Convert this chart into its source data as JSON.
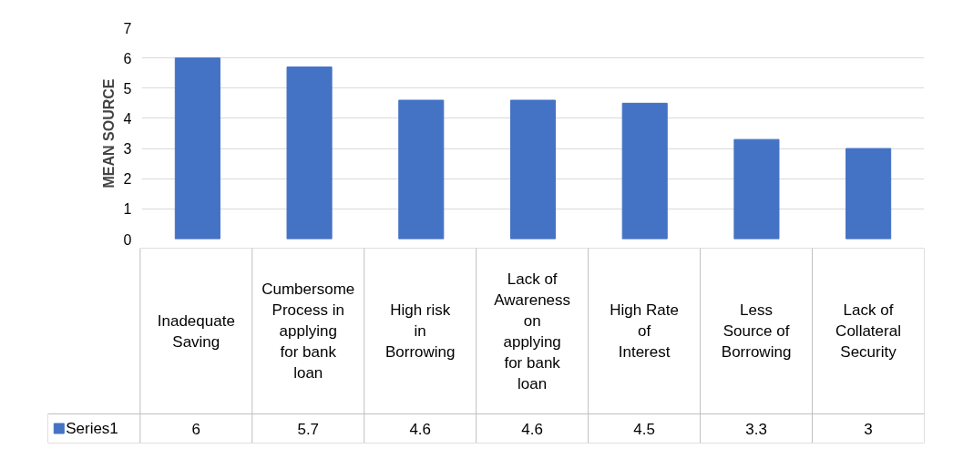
{
  "chart_data": {
    "type": "bar",
    "ylabel": "MEAN SOURCE",
    "categories": [
      "Inadequate Saving",
      "Cumbersome Process in applying for bank loan",
      "High risk in Borrowing",
      "Lack of Awareness on applying for bank loan",
      "High Rate of Interest",
      "Less Source of Borrowing",
      "Lack of Collateral Security"
    ],
    "series": [
      {
        "name": "Series1",
        "color": "#4472c4",
        "values": [
          6,
          5.7,
          4.6,
          4.6,
          4.5,
          3.3,
          3
        ]
      }
    ],
    "ylim": [
      0,
      7
    ],
    "yticks": [
      0,
      1,
      2,
      3,
      4,
      5,
      6,
      7
    ],
    "grid": "y",
    "data_labels": true,
    "legend": "bottom left"
  }
}
